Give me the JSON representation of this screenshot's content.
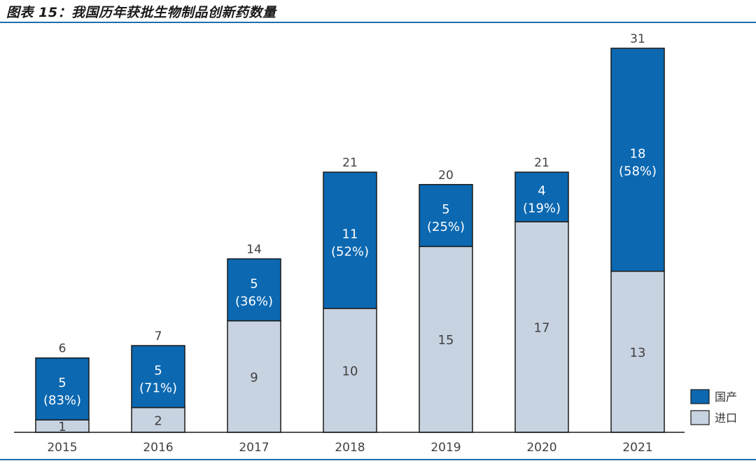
{
  "title": "图表 15：我国历年获批生物制品创新药数量",
  "colors": {
    "domestic": "#0b68b1",
    "imported": "#c8d3e2",
    "rule": "#1f6fae",
    "bar_edge": "#1a1a1a"
  },
  "chart_data": {
    "type": "bar",
    "stacked": true,
    "title": "图表 15：我国历年获批生物制品创新药数量",
    "xlabel": "",
    "ylabel": "",
    "ylim": [
      0,
      31
    ],
    "categories": [
      "2015",
      "2016",
      "2017",
      "2018",
      "2019",
      "2020",
      "2021"
    ],
    "series": [
      {
        "name": "进口",
        "key": "imported",
        "values": [
          1,
          2,
          9,
          10,
          15,
          17,
          13
        ],
        "labels": [
          "1",
          "2",
          "9",
          "10",
          "15",
          "17",
          "13"
        ]
      },
      {
        "name": "国产",
        "key": "domestic",
        "values": [
          5,
          5,
          5,
          11,
          5,
          4,
          18
        ],
        "labels": [
          "5",
          "5",
          "5",
          "11",
          "5",
          "4",
          "18"
        ],
        "percent_labels": [
          "(83%)",
          "(71%)",
          "(36%)",
          "(52%)",
          "(25%)",
          "(19%)",
          "(58%)"
        ]
      }
    ],
    "totals": [
      6,
      7,
      14,
      21,
      20,
      21,
      31
    ],
    "total_labels": [
      "6",
      "7",
      "14",
      "21",
      "20",
      "21",
      "31"
    ],
    "legend": {
      "position": "bottom-right",
      "entries": [
        {
          "label": "国产",
          "key": "domestic"
        },
        {
          "label": "进口",
          "key": "imported"
        }
      ]
    },
    "grid": false
  }
}
